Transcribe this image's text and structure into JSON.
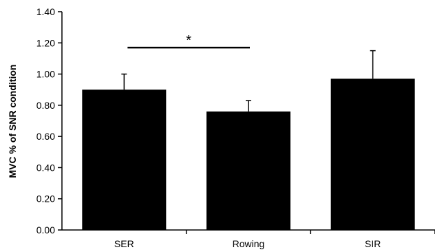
{
  "chart_data": {
    "type": "bar",
    "title": "",
    "xlabel": "",
    "ylabel": "MVC % of SNR condition",
    "categories": [
      "SER",
      "Rowing",
      "SIR"
    ],
    "values": [
      0.9,
      0.76,
      0.97
    ],
    "errors": [
      0.1,
      0.07,
      0.18
    ],
    "ylim": [
      0.0,
      1.4
    ],
    "yticks": [
      "0.00",
      "0.20",
      "0.40",
      "0.60",
      "0.80",
      "1.00",
      "1.20",
      "1.40"
    ],
    "ytick_values": [
      0.0,
      0.2,
      0.4,
      0.6,
      0.8,
      1.0,
      1.2,
      1.4
    ],
    "bar_color": "#000000",
    "grid": false,
    "significance": {
      "label": "*",
      "from_category": "SER",
      "to_category": "Rowing",
      "y": 1.17
    }
  }
}
